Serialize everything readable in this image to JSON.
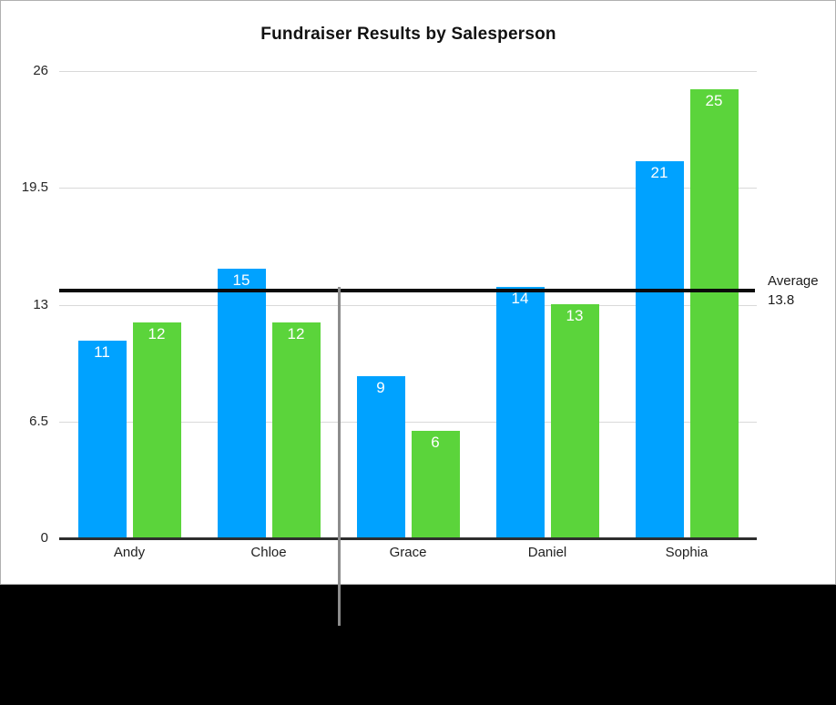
{
  "title": "Fundraiser Results by Salesperson",
  "chart_data": {
    "type": "bar",
    "title": "Fundraiser Results by Salesperson",
    "categories": [
      "Andy",
      "Chloe",
      "Grace",
      "Daniel",
      "Sophia"
    ],
    "series": [
      {
        "name": "blue-series",
        "color": "#00A2FF",
        "values": [
          11,
          15,
          9,
          14,
          21
        ]
      },
      {
        "name": "green-series",
        "color": "#5BD43B",
        "values": [
          12,
          12,
          6,
          13,
          25
        ]
      }
    ],
    "yticks": [
      0,
      6.5,
      13,
      19.5,
      26
    ],
    "ylim": [
      0,
      26
    ],
    "grid": "horizontal",
    "legend": "none",
    "bar_value_labels": true,
    "average": {
      "label": "Average",
      "value": "13.8",
      "numeric": 13.8
    }
  },
  "colors": {
    "bar_blue": "#00A2FF",
    "bar_green": "#5BD43B",
    "average_line": "#0a0a0a",
    "gridline": "#d9d9d9",
    "axis": "#2e2e2e",
    "pointer_line": "#8c8c8c",
    "background": "#ffffff",
    "letterbox": "#000000"
  }
}
